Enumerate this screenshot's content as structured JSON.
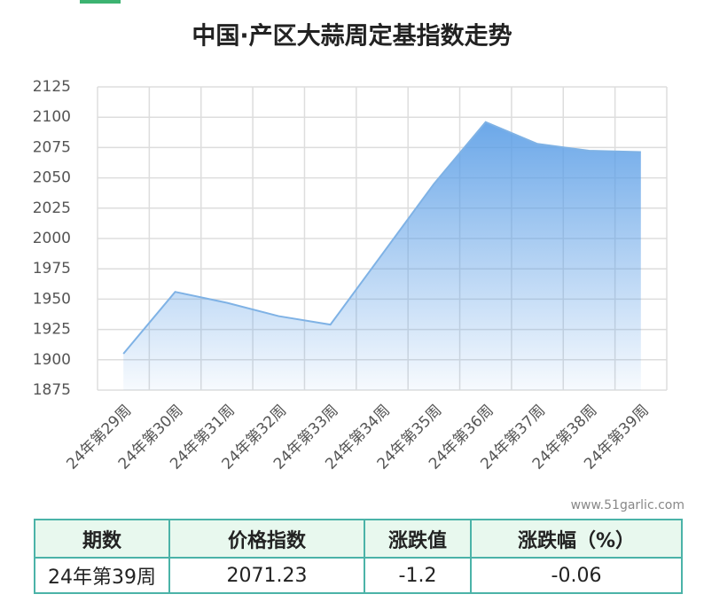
{
  "chart_data": {
    "type": "line",
    "title": "中国·产区大蒜周定基指数走势",
    "categories": [
      "24年第29周",
      "24年第30周",
      "24年第31周",
      "24年第32周",
      "24年第33周",
      "24年第34周",
      "24年第35周",
      "24年第36周",
      "24年第37周",
      "24年第38周",
      "24年第39周"
    ],
    "values": [
      1905,
      1956,
      1947,
      1936,
      1929,
      1987,
      2045,
      2096,
      2078,
      2072.4,
      2071.23
    ],
    "color": "#7fb2e5",
    "area": true,
    "ylim": [
      1875,
      2125
    ],
    "yticks": [
      1875,
      1900,
      1925,
      1950,
      1975,
      2000,
      2025,
      2050,
      2075,
      2100,
      2125
    ],
    "grid": true,
    "watermark": "www.51garlic.com"
  },
  "table": {
    "headers": [
      "期数",
      "价格指数",
      "涨跌值",
      "涨跌幅（%）"
    ],
    "rows": [
      [
        "24年第39周",
        "2071.23",
        "-1.2",
        "-0.06"
      ]
    ]
  }
}
